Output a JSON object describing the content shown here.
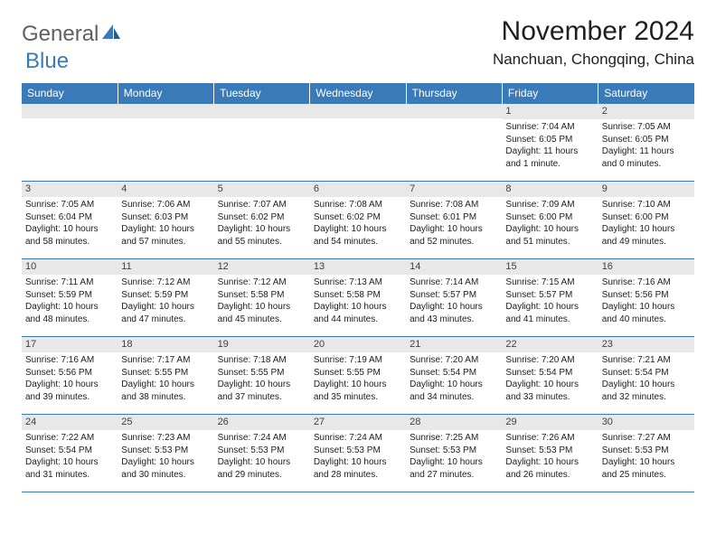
{
  "logo": {
    "general": "General",
    "blue": "Blue"
  },
  "title": "November 2024",
  "location": "Nanchuan, Chongqing, China",
  "theme": {
    "header_bg": "#3b7ab8",
    "header_fg": "#ffffff",
    "daynum_bg": "#e8e8e8",
    "border": "#3b7ab8",
    "body_bg": "#ffffff",
    "logo_gray": "#606060",
    "logo_blue": "#3b7ab8"
  },
  "weekdays": [
    "Sunday",
    "Monday",
    "Tuesday",
    "Wednesday",
    "Thursday",
    "Friday",
    "Saturday"
  ],
  "weeks": [
    [
      null,
      null,
      null,
      null,
      null,
      {
        "n": "1",
        "sr": "7:04 AM",
        "ss": "6:05 PM",
        "dl": "11 hours and 1 minute."
      },
      {
        "n": "2",
        "sr": "7:05 AM",
        "ss": "6:05 PM",
        "dl": "11 hours and 0 minutes."
      }
    ],
    [
      {
        "n": "3",
        "sr": "7:05 AM",
        "ss": "6:04 PM",
        "dl": "10 hours and 58 minutes."
      },
      {
        "n": "4",
        "sr": "7:06 AM",
        "ss": "6:03 PM",
        "dl": "10 hours and 57 minutes."
      },
      {
        "n": "5",
        "sr": "7:07 AM",
        "ss": "6:02 PM",
        "dl": "10 hours and 55 minutes."
      },
      {
        "n": "6",
        "sr": "7:08 AM",
        "ss": "6:02 PM",
        "dl": "10 hours and 54 minutes."
      },
      {
        "n": "7",
        "sr": "7:08 AM",
        "ss": "6:01 PM",
        "dl": "10 hours and 52 minutes."
      },
      {
        "n": "8",
        "sr": "7:09 AM",
        "ss": "6:00 PM",
        "dl": "10 hours and 51 minutes."
      },
      {
        "n": "9",
        "sr": "7:10 AM",
        "ss": "6:00 PM",
        "dl": "10 hours and 49 minutes."
      }
    ],
    [
      {
        "n": "10",
        "sr": "7:11 AM",
        "ss": "5:59 PM",
        "dl": "10 hours and 48 minutes."
      },
      {
        "n": "11",
        "sr": "7:12 AM",
        "ss": "5:59 PM",
        "dl": "10 hours and 47 minutes."
      },
      {
        "n": "12",
        "sr": "7:12 AM",
        "ss": "5:58 PM",
        "dl": "10 hours and 45 minutes."
      },
      {
        "n": "13",
        "sr": "7:13 AM",
        "ss": "5:58 PM",
        "dl": "10 hours and 44 minutes."
      },
      {
        "n": "14",
        "sr": "7:14 AM",
        "ss": "5:57 PM",
        "dl": "10 hours and 43 minutes."
      },
      {
        "n": "15",
        "sr": "7:15 AM",
        "ss": "5:57 PM",
        "dl": "10 hours and 41 minutes."
      },
      {
        "n": "16",
        "sr": "7:16 AM",
        "ss": "5:56 PM",
        "dl": "10 hours and 40 minutes."
      }
    ],
    [
      {
        "n": "17",
        "sr": "7:16 AM",
        "ss": "5:56 PM",
        "dl": "10 hours and 39 minutes."
      },
      {
        "n": "18",
        "sr": "7:17 AM",
        "ss": "5:55 PM",
        "dl": "10 hours and 38 minutes."
      },
      {
        "n": "19",
        "sr": "7:18 AM",
        "ss": "5:55 PM",
        "dl": "10 hours and 37 minutes."
      },
      {
        "n": "20",
        "sr": "7:19 AM",
        "ss": "5:55 PM",
        "dl": "10 hours and 35 minutes."
      },
      {
        "n": "21",
        "sr": "7:20 AM",
        "ss": "5:54 PM",
        "dl": "10 hours and 34 minutes."
      },
      {
        "n": "22",
        "sr": "7:20 AM",
        "ss": "5:54 PM",
        "dl": "10 hours and 33 minutes."
      },
      {
        "n": "23",
        "sr": "7:21 AM",
        "ss": "5:54 PM",
        "dl": "10 hours and 32 minutes."
      }
    ],
    [
      {
        "n": "24",
        "sr": "7:22 AM",
        "ss": "5:54 PM",
        "dl": "10 hours and 31 minutes."
      },
      {
        "n": "25",
        "sr": "7:23 AM",
        "ss": "5:53 PM",
        "dl": "10 hours and 30 minutes."
      },
      {
        "n": "26",
        "sr": "7:24 AM",
        "ss": "5:53 PM",
        "dl": "10 hours and 29 minutes."
      },
      {
        "n": "27",
        "sr": "7:24 AM",
        "ss": "5:53 PM",
        "dl": "10 hours and 28 minutes."
      },
      {
        "n": "28",
        "sr": "7:25 AM",
        "ss": "5:53 PM",
        "dl": "10 hours and 27 minutes."
      },
      {
        "n": "29",
        "sr": "7:26 AM",
        "ss": "5:53 PM",
        "dl": "10 hours and 26 minutes."
      },
      {
        "n": "30",
        "sr": "7:27 AM",
        "ss": "5:53 PM",
        "dl": "10 hours and 25 minutes."
      }
    ]
  ],
  "labels": {
    "sunrise": "Sunrise:",
    "sunset": "Sunset:",
    "daylight": "Daylight:"
  }
}
